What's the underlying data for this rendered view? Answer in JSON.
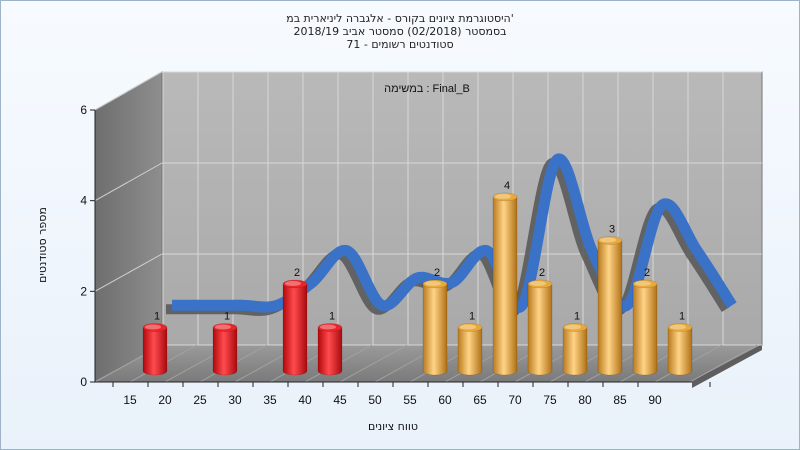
{
  "chart": {
    "title_line1": "היסטוגרמת ציונים בקורס - אלגברה ליניארית במ'",
    "title_line2": "בסמסטר  (02/2018)  סמסטר אביב 2018/19",
    "title_line3": "סטודנטים רשומים - 71",
    "task_label": "במשימה : Final_B",
    "xlabel": "טווח ציונים",
    "ylabel": "מספר סטודנטים"
  },
  "chart_data": {
    "type": "bar",
    "title": "היסטוגרמת ציונים בקורס - אלגברה ליניארית במ'",
    "xlabel": "טווח ציונים",
    "ylabel": "מספר סטודנטים",
    "x_ticks": [
      "15",
      "20",
      "25",
      "30",
      "35",
      "40",
      "45",
      "50",
      "55",
      "60",
      "65",
      "70",
      "75",
      "80",
      "85",
      "90"
    ],
    "y_ticks": [
      "0",
      "2",
      "4",
      "6"
    ],
    "ylim": [
      0,
      6
    ],
    "bars": [
      {
        "bin": "15-20",
        "value": 1,
        "color": "#e8262a"
      },
      {
        "bin": "25-30",
        "value": 1,
        "color": "#e8262a"
      },
      {
        "bin": "35-40",
        "value": 2,
        "color": "#e8262a"
      },
      {
        "bin": "40-45",
        "value": 1,
        "color": "#e8262a"
      },
      {
        "bin": "55-60",
        "value": 2,
        "color": "#e9a93a"
      },
      {
        "bin": "60-65",
        "value": 1,
        "color": "#e9a93a"
      },
      {
        "bin": "65-70",
        "value": 4,
        "color": "#e9a93a"
      },
      {
        "bin": "70-75",
        "value": 2,
        "color": "#e9a93a"
      },
      {
        "bin": "75-80",
        "value": 1,
        "color": "#e9a93a"
      },
      {
        "bin": "80-85",
        "value": 3,
        "color": "#e9a93a"
      },
      {
        "bin": "85-90",
        "value": 2,
        "color": "#e9a93a"
      },
      {
        "bin": "90-95",
        "value": 1,
        "color": "#e9a93a"
      }
    ],
    "curve": {
      "x": [
        15,
        20,
        25,
        30,
        35,
        40,
        45,
        50,
        55,
        60,
        65,
        70,
        75,
        80,
        85,
        90,
        95
      ],
      "y": [
        1.4,
        1.4,
        1.4,
        1.4,
        1.9,
        2.6,
        1.4,
        2.0,
        1.9,
        2.6,
        1.4,
        4.6,
        2.6,
        1.4,
        3.6,
        2.6,
        1.4
      ],
      "color": "#3a72c8",
      "shadow_color": "#555555"
    },
    "grid": true,
    "legend": "none"
  }
}
